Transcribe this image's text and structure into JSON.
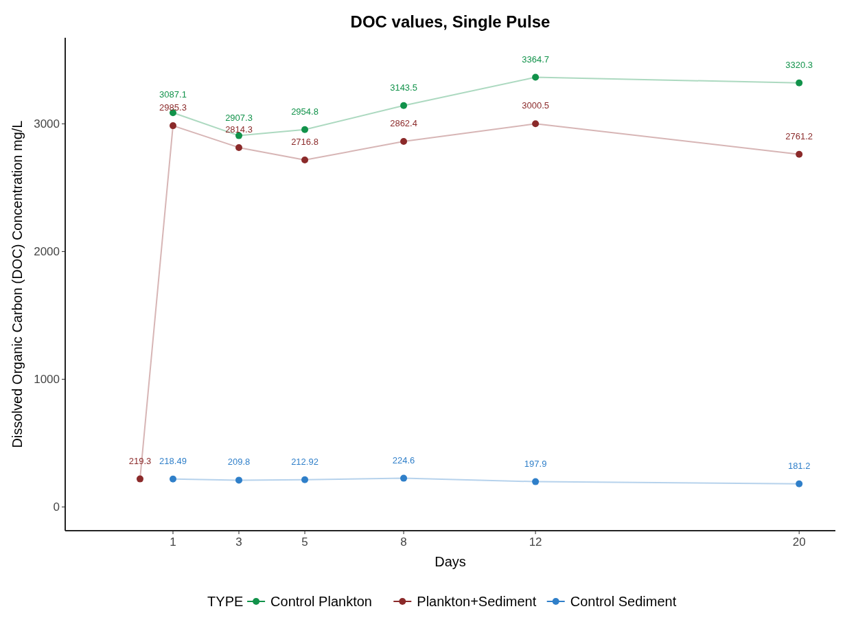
{
  "chart_data": {
    "type": "line",
    "title": "DOC values, Single Pulse",
    "xlabel": "Days",
    "ylabel": "Dissolved Organic Carbon (DOC) Concentration mg/L",
    "legend_title": "TYPE",
    "legend": "bottom",
    "grid": false,
    "marker": "circle",
    "data_labels": true,
    "xlim": [
      -2.27,
      21.1
    ],
    "xticks": [
      1,
      3,
      5,
      8,
      12,
      20
    ],
    "ylim": [
      -186,
      3674
    ],
    "yticks": [
      0,
      1000,
      2000,
      3000
    ],
    "series": [
      {
        "name": "Control Plankton",
        "color": "#11924a",
        "x": [
          1,
          3,
          5,
          8,
          12,
          20
        ],
        "values": [
          3087.1,
          2907.3,
          2954.8,
          3143.5,
          3364.7,
          3320.3
        ]
      },
      {
        "name": "Plankton+Sediment",
        "color": "#8b2a2a",
        "x": [
          0,
          1,
          3,
          5,
          8,
          12,
          20
        ],
        "values": [
          219.3,
          2985.3,
          2814.3,
          2716.8,
          2862.4,
          3000.5,
          2761.2
        ]
      },
      {
        "name": "Control Sediment",
        "color": "#2f7fc9",
        "x": [
          1,
          3,
          5,
          8,
          12,
          20
        ],
        "values": [
          218.49,
          209.8,
          212.92,
          224.6,
          197.9,
          181.2
        ]
      }
    ]
  }
}
